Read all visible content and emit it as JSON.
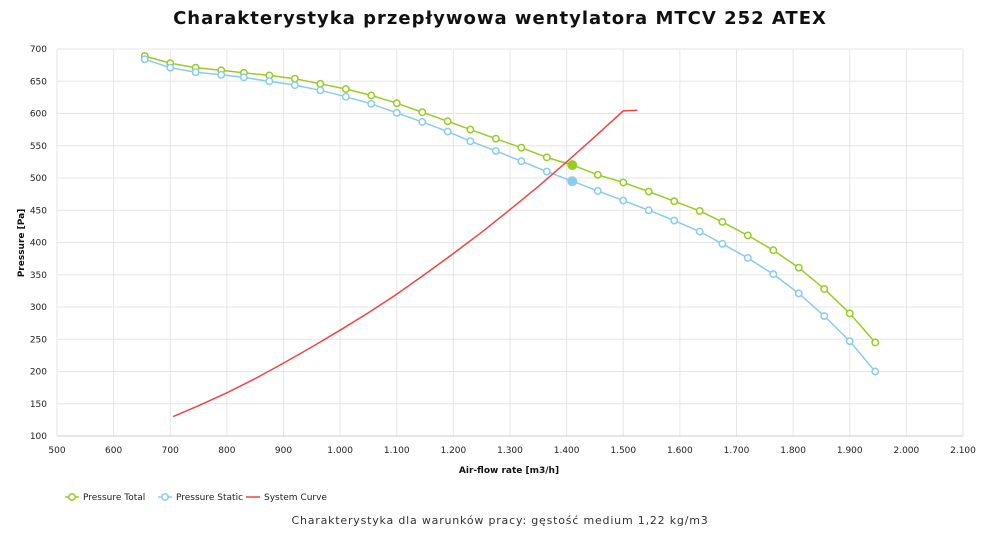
{
  "chart_data": {
    "type": "line",
    "title": "Charakterystyka przepływowa wentylatora MTCV 252 ATEX",
    "subtitle": "Charakterystyka dla warunków pracy: gęstość medium 1,22 kg/m3",
    "xlabel": "Air-flow rate [m3/h]",
    "ylabel": "Pressure [Pa]",
    "xlim": [
      500,
      2100
    ],
    "ylim": [
      100,
      700
    ],
    "x_ticks": [
      500,
      600,
      700,
      800,
      900,
      1000,
      1100,
      1200,
      1300,
      1400,
      1500,
      1600,
      1700,
      1800,
      1900,
      2000,
      2100
    ],
    "x_tick_labels": [
      "500",
      "600",
      "700",
      "800",
      "900",
      "1.000",
      "1.100",
      "1.200",
      "1.300",
      "1.400",
      "1.500",
      "1.600",
      "1.700",
      "1.800",
      "1.900",
      "2.000",
      "2.100"
    ],
    "y_ticks": [
      100,
      150,
      200,
      250,
      300,
      350,
      400,
      450,
      500,
      550,
      600,
      650,
      700
    ],
    "y_tick_labels": [
      "100",
      "150",
      "200",
      "250",
      "300",
      "350",
      "400",
      "450",
      "500",
      "550",
      "600",
      "650",
      "700"
    ],
    "grid": true,
    "legend_position": "bottom-left",
    "series": [
      {
        "name": "Pressure Total",
        "color": "#99cc22",
        "marker": "circle",
        "x": [
          655,
          700,
          745,
          790,
          830,
          875,
          920,
          965,
          1010,
          1055,
          1100,
          1145,
          1190,
          1230,
          1275,
          1320,
          1365,
          1410,
          1455,
          1500,
          1545,
          1590,
          1635,
          1675,
          1720,
          1765,
          1810,
          1855,
          1900,
          1945
        ],
        "y": [
          689,
          678,
          671,
          667,
          663,
          659,
          654,
          646,
          638,
          628,
          616,
          602,
          588,
          575,
          561,
          547,
          532,
          520,
          505,
          493,
          479,
          464,
          449,
          432,
          411,
          388,
          361,
          328,
          290,
          245
        ]
      },
      {
        "name": "Pressure Static",
        "color": "#88ccee",
        "marker": "circle",
        "x": [
          655,
          700,
          745,
          790,
          830,
          875,
          920,
          965,
          1010,
          1055,
          1100,
          1145,
          1190,
          1230,
          1275,
          1320,
          1365,
          1410,
          1455,
          1500,
          1545,
          1590,
          1635,
          1675,
          1720,
          1765,
          1810,
          1855,
          1900,
          1945
        ],
        "y": [
          684,
          671,
          664,
          660,
          656,
          650,
          644,
          636,
          626,
          615,
          601,
          587,
          572,
          557,
          542,
          526,
          510,
          495,
          480,
          465,
          450,
          434,
          417,
          398,
          376,
          351,
          321,
          286,
          247,
          200
        ]
      },
      {
        "name": "System Curve",
        "color": "#ee4444",
        "marker": "none",
        "x": [
          705,
          750,
          800,
          850,
          900,
          950,
          1000,
          1050,
          1100,
          1150,
          1200,
          1250,
          1300,
          1350,
          1400,
          1450,
          1500,
          1525
        ],
        "y": [
          130,
          147,
          167,
          189,
          213,
          238,
          264,
          291,
          320,
          351,
          383,
          416,
          451,
          487,
          525,
          564,
          604,
          605
        ]
      }
    ],
    "operating_points": [
      {
        "series": "Pressure Total",
        "x": 1410,
        "y": 520
      },
      {
        "series": "Pressure Static",
        "x": 1410,
        "y": 495
      }
    ]
  }
}
